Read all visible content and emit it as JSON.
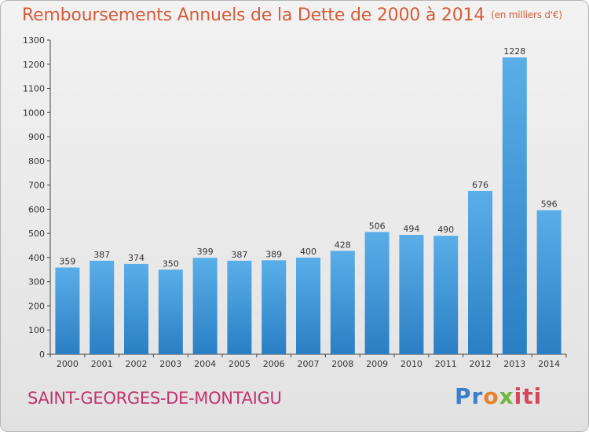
{
  "header": {
    "title": "Remboursements Annuels de la Dette de 2000 à 2014",
    "subtitle": "(en milliers d'€)"
  },
  "footer": {
    "commune": "SAINT-GEORGES-DE-MONTAIGU",
    "logo": {
      "p1": "Pr",
      "p2": "o",
      "p3": "x",
      "p4": "iti"
    }
  },
  "colors": {
    "bar_top": "#5aaee8",
    "bar_bottom": "#2a7fc4",
    "title": "#d45c3a",
    "commune": "#c0336f"
  },
  "chart_data": {
    "type": "bar",
    "title": "Remboursements Annuels de la Dette de 2000 à 2014",
    "subtitle": "(en milliers d'€)",
    "xlabel": "",
    "ylabel": "",
    "categories": [
      "2000",
      "2001",
      "2002",
      "2003",
      "2004",
      "2005",
      "2006",
      "2007",
      "2008",
      "2009",
      "2010",
      "2011",
      "2012",
      "2013",
      "2014"
    ],
    "values": [
      359,
      387,
      374,
      350,
      399,
      387,
      389,
      400,
      428,
      506,
      494,
      490,
      676,
      1228,
      596
    ],
    "ylim": [
      0,
      1300
    ],
    "yticks": [
      0,
      100,
      200,
      300,
      400,
      500,
      600,
      700,
      800,
      900,
      1000,
      1100,
      1200,
      1300
    ],
    "grid": false,
    "legend": "none"
  }
}
